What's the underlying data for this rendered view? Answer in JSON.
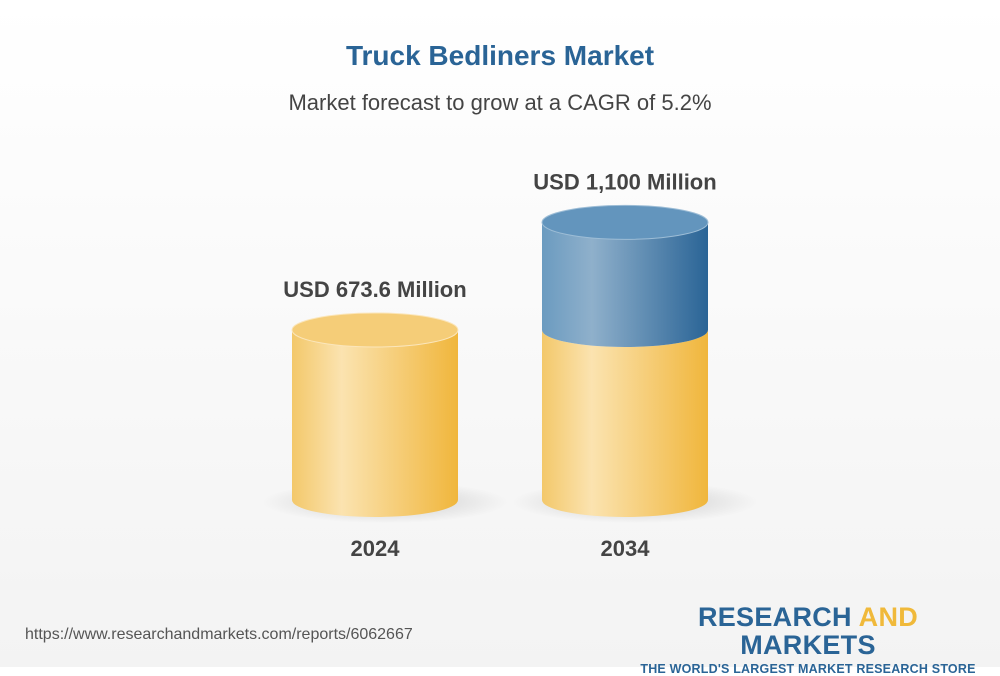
{
  "chart_data": {
    "type": "bar",
    "style": "3d-cylinder",
    "title": "Truck Bedliners Market",
    "subtitle": "Market forecast to grow at a CAGR of 5.2%",
    "categories": [
      "2024",
      "2034"
    ],
    "values": [
      673.6,
      1100
    ],
    "unit": "USD Million",
    "data_labels": [
      "USD 673.6 Million",
      "USD 1,100 Million"
    ],
    "colors": {
      "base": "#f2c35a",
      "growth": "#2a6496"
    }
  },
  "footer": {
    "url": "https://www.researchandmarkets.com/reports/6062667",
    "logo_part1": "RESEARCH ",
    "logo_part2": "AND",
    "logo_part3": " MARKETS",
    "logo_tagline": "THE WORLD'S LARGEST MARKET RESEARCH STORE"
  }
}
